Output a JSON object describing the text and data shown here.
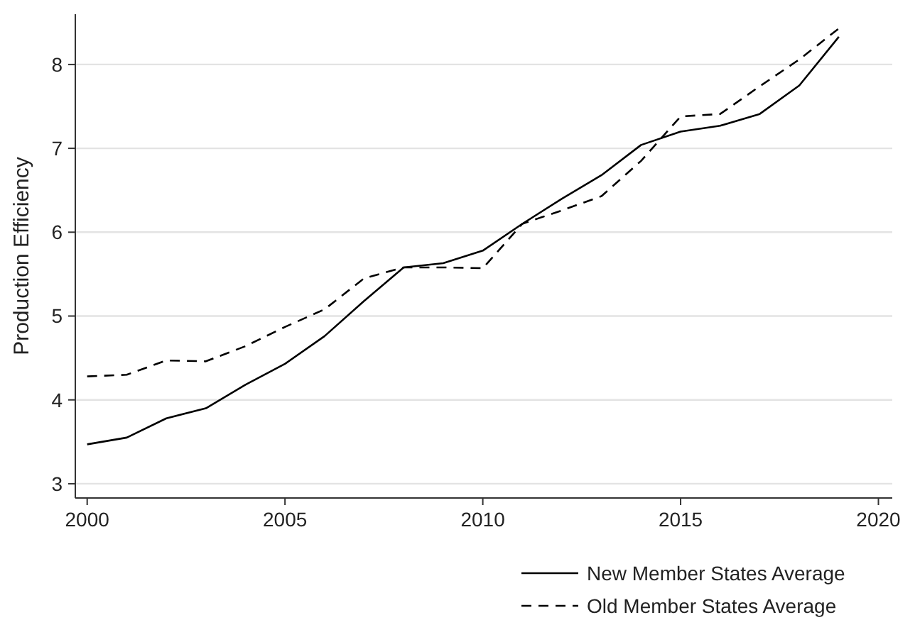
{
  "chart_data": {
    "type": "line",
    "ylabel": "Production Efficiency",
    "x": [
      2000,
      2001,
      2002,
      2003,
      2004,
      2005,
      2006,
      2007,
      2008,
      2009,
      2010,
      2011,
      2012,
      2013,
      2014,
      2015,
      2016,
      2017,
      2018,
      2019
    ],
    "series": [
      {
        "name": "New Member States Average",
        "color": "#000000",
        "line_style": "solid",
        "values": [
          3.47,
          3.55,
          3.78,
          3.9,
          4.18,
          4.43,
          4.76,
          5.18,
          5.58,
          5.63,
          5.78,
          6.1,
          6.4,
          6.68,
          7.04,
          7.2,
          7.27,
          7.41,
          7.75,
          8.33
        ]
      },
      {
        "name": "Old Member States Average",
        "color": "#000000",
        "line_style": "dashed",
        "values": [
          4.28,
          4.3,
          4.47,
          4.46,
          4.64,
          4.87,
          5.08,
          5.45,
          5.58,
          5.58,
          5.57,
          6.1,
          6.26,
          6.43,
          6.85,
          7.38,
          7.41,
          7.74,
          8.06,
          8.43
        ]
      }
    ],
    "xlim": [
      1999.7,
      2020.35
    ],
    "xticks": [
      2000,
      2005,
      2010,
      2015,
      2020
    ],
    "ylim": [
      2.83,
      8.6
    ],
    "yticks": [
      3,
      4,
      5,
      6,
      7,
      8
    ],
    "grid": "y",
    "legend": "bottom right"
  }
}
